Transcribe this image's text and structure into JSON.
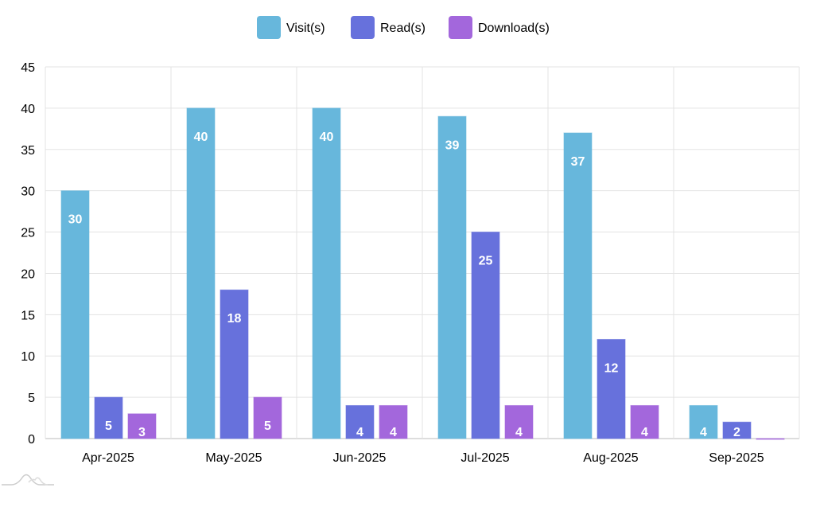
{
  "chart_data": {
    "type": "bar",
    "title": "",
    "xlabel": "",
    "ylabel": "",
    "ylim": [
      0,
      45
    ],
    "yticks": [
      0,
      5,
      10,
      15,
      20,
      25,
      30,
      35,
      40,
      45
    ],
    "grid": true,
    "legend_position": "top-center",
    "categories": [
      "Apr-2025",
      "May-2025",
      "Jun-2025",
      "Jul-2025",
      "Aug-2025",
      "Sep-2025"
    ],
    "series": [
      {
        "name": "Visit(s)",
        "color": "#67b7dc",
        "values": [
          30,
          40,
          40,
          39,
          37,
          4
        ]
      },
      {
        "name": "Read(s)",
        "color": "#6771dc",
        "values": [
          5,
          18,
          4,
          25,
          12,
          2
        ]
      },
      {
        "name": "Download(s)",
        "color": "#a367dc",
        "values": [
          3,
          5,
          4,
          4,
          4,
          0
        ]
      }
    ]
  }
}
